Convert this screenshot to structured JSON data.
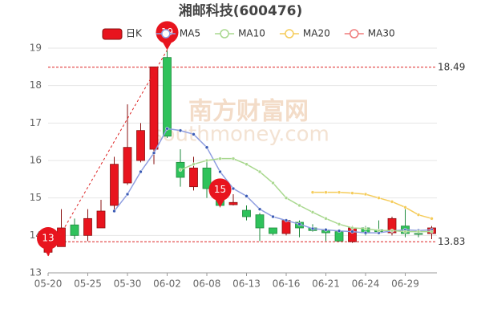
{
  "chart_data": {
    "type": "candlestick",
    "title": "湘邮科技(600476)",
    "categories": [
      "05-20",
      null,
      null,
      "05-25",
      null,
      null,
      "05-30",
      null,
      null,
      "06-02",
      null,
      null,
      "06-08",
      null,
      null,
      "06-13",
      null,
      null,
      "06-16",
      null,
      null,
      "06-21",
      null,
      null,
      "06-24",
      null,
      null,
      "06-29",
      null,
      null
    ],
    "series": [
      {
        "name": "日K",
        "up_color": "#e8141e",
        "down_color": "#2fc25b",
        "open": [
          13.55,
          13.7,
          14.28,
          14.0,
          14.2,
          14.8,
          15.4,
          16.0,
          16.3,
          18.75,
          15.95,
          15.3,
          15.8,
          15.15,
          14.82,
          14.67,
          14.55,
          14.2,
          14.05,
          14.35,
          14.2,
          14.13,
          14.1,
          13.83,
          14.2,
          14.15,
          14.07,
          14.25,
          14.05,
          14.05
        ],
        "close": [
          13.9,
          14.2,
          14.0,
          14.45,
          14.65,
          15.9,
          16.35,
          16.8,
          18.5,
          16.65,
          15.55,
          15.8,
          15.25,
          14.8,
          14.88,
          14.5,
          14.2,
          14.05,
          14.4,
          14.2,
          14.13,
          14.07,
          13.85,
          14.2,
          14.07,
          14.1,
          14.45,
          14.05,
          14.03,
          14.2
        ],
        "high": [
          14.2,
          14.7,
          14.45,
          14.7,
          14.95,
          16.1,
          17.5,
          17.0,
          18.5,
          18.95,
          16.3,
          16.1,
          16.0,
          15.3,
          15.1,
          14.8,
          14.6,
          14.2,
          14.45,
          14.4,
          14.3,
          14.2,
          14.15,
          14.25,
          14.25,
          14.4,
          14.5,
          14.7,
          14.1,
          14.25
        ],
        "low": [
          13.45,
          13.7,
          13.9,
          13.85,
          14.2,
          14.65,
          15.35,
          15.95,
          15.9,
          16.6,
          15.3,
          15.2,
          15.0,
          14.75,
          14.8,
          14.4,
          13.85,
          14.0,
          14.0,
          13.95,
          14.1,
          13.85,
          13.83,
          13.8,
          14.0,
          14.05,
          14.0,
          13.95,
          13.95,
          13.9
        ]
      },
      {
        "name": "MA5",
        "color": "#8f9ee0",
        "dot_color": "#3b5bb5",
        "values": [
          null,
          null,
          null,
          null,
          null,
          14.65,
          15.1,
          15.7,
          16.2,
          16.85,
          16.8,
          16.7,
          16.35,
          15.7,
          15.25,
          15.05,
          14.7,
          14.5,
          14.4,
          14.3,
          14.18,
          14.15,
          14.12,
          14.1,
          14.07,
          14.07,
          14.12,
          14.15,
          14.13,
          14.15
        ]
      },
      {
        "name": "MA10",
        "color": "#a9d88f",
        "values": [
          null,
          null,
          null,
          null,
          null,
          null,
          null,
          null,
          null,
          null,
          15.75,
          15.9,
          16.0,
          16.05,
          16.05,
          15.9,
          15.7,
          15.4,
          15.0,
          14.8,
          14.62,
          14.45,
          14.3,
          14.2,
          14.18,
          14.13,
          14.13,
          14.1,
          14.1,
          14.1
        ]
      },
      {
        "name": "MA20",
        "color": "#f5cc5a",
        "values": [
          null,
          null,
          null,
          null,
          null,
          null,
          null,
          null,
          null,
          null,
          null,
          null,
          null,
          null,
          null,
          null,
          null,
          null,
          null,
          null,
          15.15,
          15.15,
          15.15,
          15.13,
          15.1,
          15.0,
          14.9,
          14.75,
          14.55,
          14.45
        ]
      },
      {
        "name": "MA30",
        "color": "#ef7b7b",
        "values": [
          null,
          null,
          null,
          null,
          null,
          null,
          null,
          null,
          null,
          null,
          null,
          null,
          null,
          null,
          null,
          null,
          null,
          null,
          null,
          null,
          null,
          null,
          null,
          null,
          null,
          null,
          null,
          null,
          null,
          null
        ]
      }
    ],
    "ylim": [
      13,
      19
    ],
    "yticks": [
      13,
      14,
      15,
      16,
      17,
      18,
      19
    ],
    "grid": true,
    "reference_lines": [
      18.49,
      13.83
    ],
    "annotations": [
      {
        "text": "19",
        "value": 18.95
      },
      {
        "text": "13",
        "value": 13.45
      },
      {
        "text": "15",
        "value": 14.75
      }
    ],
    "watermark": [
      "南方财富网",
      "southmoney.com"
    ]
  }
}
